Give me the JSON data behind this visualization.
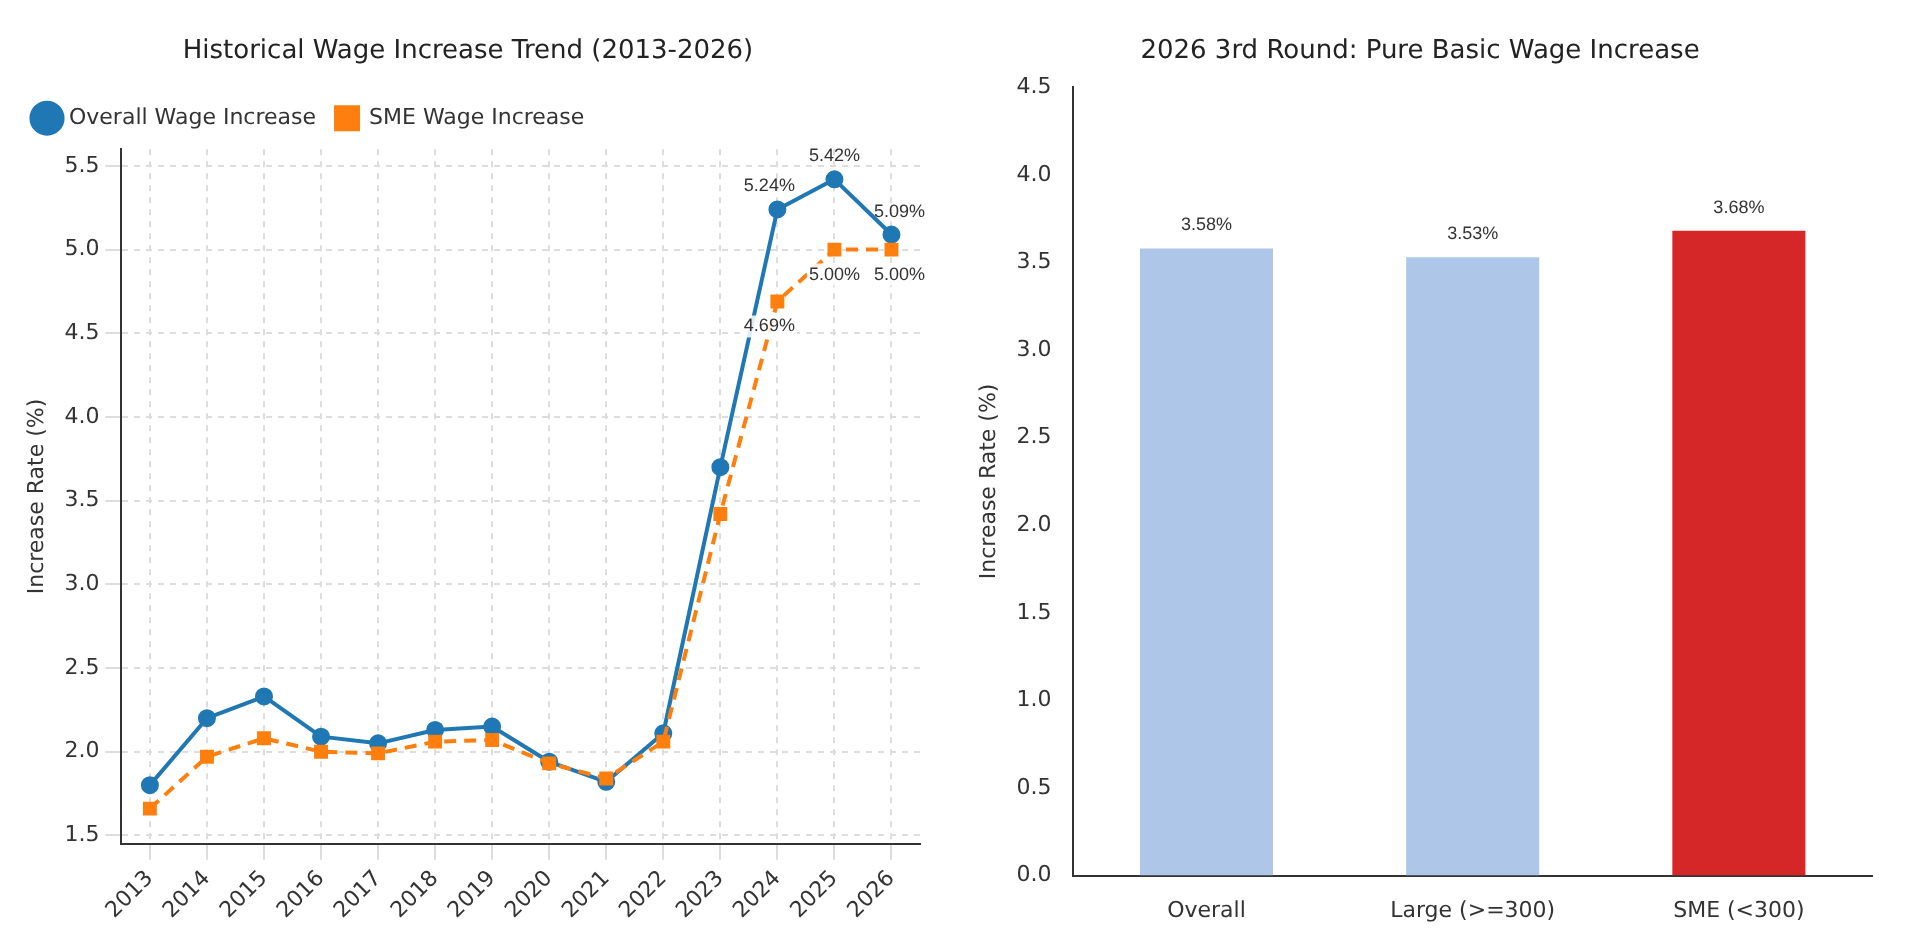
{
  "chart_data": [
    {
      "type": "line",
      "title": "Historical Wage Increase Trend (2013-2026)",
      "ylabel": "Increase Rate (%)",
      "categories": [
        "2013",
        "2014",
        "2015",
        "2016",
        "2017",
        "2018",
        "2019",
        "2020",
        "2021",
        "2022",
        "2023",
        "2024",
        "2025",
        "2026"
      ],
      "series": [
        {
          "name": "Overall Wage Increase",
          "color": "#1f77b4",
          "marker": "circle",
          "line_style": "solid",
          "values": [
            1.8,
            2.2,
            2.33,
            2.09,
            2.05,
            2.13,
            2.15,
            1.94,
            1.82,
            2.11,
            3.7,
            5.24,
            5.42,
            5.09
          ],
          "value_labels": [
            null,
            null,
            null,
            null,
            null,
            null,
            null,
            null,
            null,
            null,
            null,
            "5.24%",
            "5.42%",
            "5.09%"
          ]
        },
        {
          "name": "SME Wage Increase",
          "color": "#ff7f0e",
          "marker": "square",
          "line_style": "dashed",
          "values": [
            1.66,
            1.97,
            2.08,
            2.0,
            1.99,
            2.06,
            2.07,
            1.93,
            1.84,
            2.06,
            3.42,
            4.69,
            5.0,
            5.0
          ],
          "value_labels": [
            null,
            null,
            null,
            null,
            null,
            null,
            null,
            null,
            null,
            null,
            null,
            "4.69%",
            "5.00%",
            "5.00%"
          ]
        }
      ],
      "ylim": [
        1.45,
        5.6
      ],
      "yticks": [
        1.5,
        {
          "value": 2,
          "label": "2.0"
        },
        2.5,
        {
          "value": 3,
          "label": "3.0"
        },
        3.5,
        {
          "value": 4,
          "label": "4.0"
        },
        4.5,
        {
          "value": 5,
          "label": "5.0"
        },
        5.5
      ],
      "grid": true,
      "legend": "top left"
    },
    {
      "type": "bar",
      "title": "2026 3rd Round: Pure Basic Wage Increase",
      "ylabel": "Increase Rate (%)",
      "categories": [
        "Overall",
        "Large (>=300)",
        "SME (<300)"
      ],
      "values": [
        3.58,
        3.53,
        3.68
      ],
      "colors": [
        "#aec7e8",
        "#aec7e8",
        "#d62728"
      ],
      "value_labels": [
        "3.58%",
        "3.53%",
        "3.68%"
      ],
      "ylim": [
        0,
        4.5
      ],
      "yticks": [
        {
          "value": 0,
          "label": "0.0"
        },
        0.5,
        {
          "value": 1,
          "label": "1.0"
        },
        1.5,
        {
          "value": 2,
          "label": "2.0"
        },
        2.5,
        {
          "value": 3,
          "label": "3.0"
        },
        3.5,
        {
          "value": 4,
          "label": "4.0"
        },
        4.5
      ],
      "grid": false
    }
  ]
}
